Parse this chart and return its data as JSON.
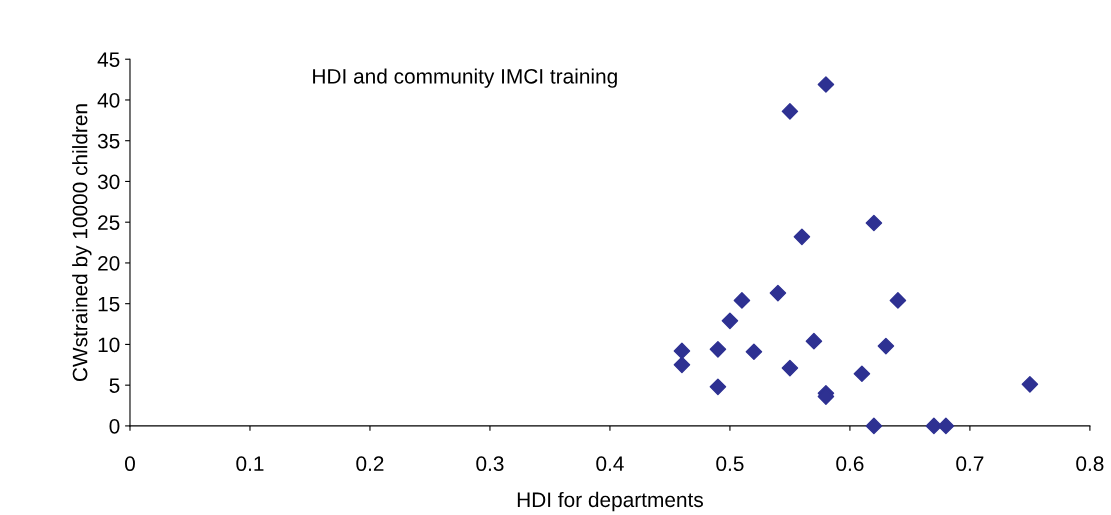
{
  "chart_data": {
    "type": "scatter",
    "title": "HDI and community IMCI training",
    "xlabel": "HDI for departments",
    "ylabel": "CWstrained by 10000 children",
    "x": [
      0.46,
      0.46,
      0.49,
      0.49,
      0.5,
      0.51,
      0.52,
      0.54,
      0.55,
      0.55,
      0.56,
      0.57,
      0.58,
      0.58,
      0.58,
      0.61,
      0.62,
      0.62,
      0.63,
      0.64,
      0.67,
      0.68,
      0.75
    ],
    "series": [
      {
        "color": "#2e3192",
        "values": [
          9.2,
          7.5,
          9.4,
          4.8,
          12.9,
          15.4,
          9.1,
          16.3,
          38.6,
          7.1,
          23.2,
          10.4,
          41.9,
          4.0,
          3.6,
          6.4,
          24.9,
          0,
          9.8,
          15.4,
          0,
          0,
          5.1
        ]
      }
    ],
    "xlim": [
      0,
      0.8
    ],
    "xticks": [
      0,
      0.1,
      0.2,
      0.3,
      0.4,
      0.5,
      0.6,
      0.7,
      0.8
    ],
    "ylim": [
      0,
      45
    ],
    "yticks": [
      0,
      5,
      10,
      15,
      20,
      25,
      30,
      35,
      40,
      45
    ],
    "marker": "diamond",
    "grid": false,
    "legend": false
  }
}
